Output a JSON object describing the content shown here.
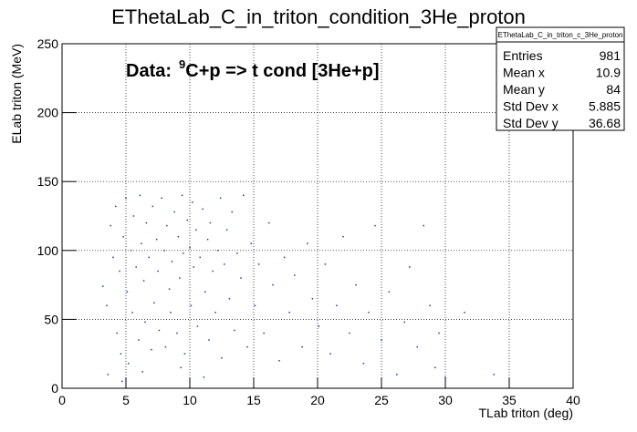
{
  "chart_data": {
    "type": "scatter",
    "title": "EThetaLab_C_in_triton_condition_3He_proton",
    "xlabel": "TLab triton (deg)",
    "ylabel": "ELab triton (MeV)",
    "annotation": {
      "prefix": "Data:",
      "superscript": "9",
      "text": "C+p => t cond [3He+p]"
    },
    "xlim": [
      0,
      40
    ],
    "ylim": [
      0,
      250
    ],
    "xticks": [
      0,
      5,
      10,
      15,
      20,
      25,
      30,
      35,
      40
    ],
    "yticks": [
      0,
      50,
      100,
      150,
      200,
      250
    ],
    "grid": true,
    "color": "#1f3f8f",
    "x": [
      3.2,
      3.5,
      3.8,
      4.0,
      4.2,
      4.3,
      4.5,
      4.6,
      4.8,
      5.0,
      5.1,
      5.2,
      5.4,
      5.5,
      5.6,
      5.8,
      6.0,
      6.1,
      6.2,
      6.4,
      6.5,
      6.6,
      6.8,
      7.0,
      7.1,
      7.2,
      7.4,
      7.5,
      7.6,
      7.8,
      8.0,
      8.1,
      8.2,
      8.4,
      8.5,
      8.6,
      8.8,
      9.0,
      9.1,
      9.2,
      9.4,
      9.5,
      9.6,
      9.8,
      10.0,
      10.1,
      10.2,
      10.3,
      10.5,
      10.6,
      10.8,
      11.0,
      11.2,
      11.4,
      11.5,
      11.6,
      11.8,
      12.0,
      12.2,
      12.4,
      12.5,
      12.7,
      12.9,
      13.1,
      13.3,
      13.5,
      13.7,
      14.0,
      14.2,
      14.5,
      14.8,
      15.1,
      15.4,
      15.8,
      16.2,
      16.5,
      17.0,
      17.4,
      17.8,
      18.2,
      18.8,
      19.2,
      19.6,
      20.1,
      20.6,
      21.0,
      21.5,
      22.0,
      22.5,
      23.0,
      23.6,
      24.0,
      24.5,
      25.0,
      25.6,
      26.2,
      26.8,
      27.2,
      27.8,
      28.3,
      28.8,
      29.2,
      29.5,
      30.0,
      31.5,
      33.8,
      3.6,
      4.7,
      6.3,
      9.3,
      11.1
    ],
    "y": [
      74,
      60,
      118,
      95,
      132,
      40,
      85,
      25,
      110,
      138,
      70,
      18,
      100,
      55,
      125,
      88,
      35,
      140,
      105,
      78,
      48,
      120,
      95,
      28,
      132,
      62,
      108,
      85,
      42,
      138,
      100,
      30,
      118,
      72,
      55,
      92,
      128,
      40,
      110,
      80,
      140,
      98,
      25,
      122,
      102,
      60,
      135,
      88,
      115,
      45,
      95,
      130,
      70,
      108,
      35,
      120,
      85,
      55,
      100,
      138,
      22,
      90,
      115,
      65,
      128,
      42,
      98,
      80,
      140,
      30,
      105,
      60,
      90,
      40,
      120,
      75,
      20,
      95,
      55,
      82,
      30,
      105,
      65,
      45,
      90,
      25,
      60,
      110,
      40,
      75,
      18,
      55,
      118,
      35,
      70,
      10,
      48,
      88,
      30,
      118,
      60,
      15,
      40,
      8,
      55,
      10,
      10,
      5,
      12,
      15,
      8
    ],
    "stats": {
      "title": "EThetaLab_C_in_triton_c_3He_proton",
      "rows": [
        {
          "label": "Entries",
          "value": 981
        },
        {
          "label": "Mean x",
          "value": 10.9
        },
        {
          "label": "Mean y",
          "value": 84
        },
        {
          "label": "Std Dev x",
          "value": 5.885
        },
        {
          "label": "Std Dev y",
          "value": 36.68
        }
      ]
    }
  }
}
